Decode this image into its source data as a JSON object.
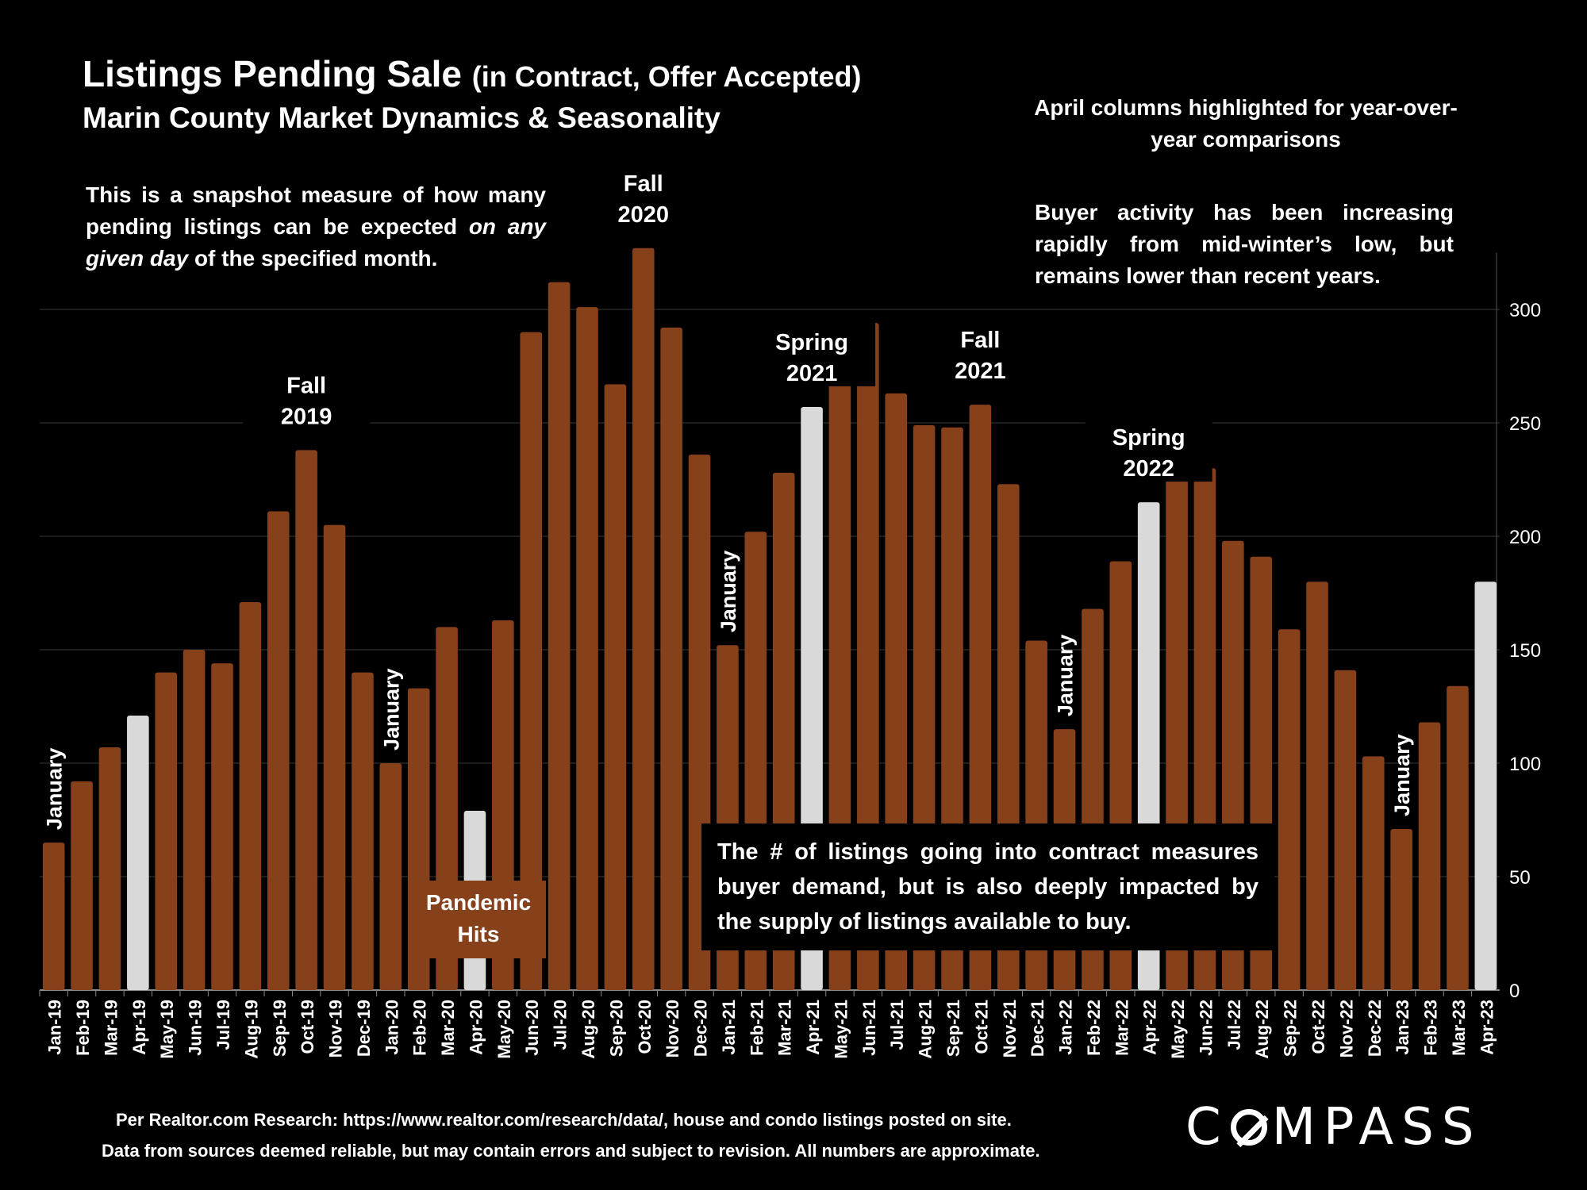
{
  "header": {
    "title_main": "Listings Pending Sale",
    "title_paren": "(in Contract, Offer Accepted)",
    "subtitle": "Marin County Market Dynamics & Seasonality"
  },
  "notes": {
    "left_part1": "This is a snapshot measure of how many pending listings can be expected",
    "left_italic": "on any given day",
    "left_part2": "of the specified month.",
    "april": "April columns highlighted for year-over-year comparisons",
    "buyer": "Buyer activity has been increasing rapidly from mid-winter’s low, but remains lower than recent years.",
    "callout": "The # of listings going into contract measures buyer demand, but is also deeply impacted by the supply of listings available to buy.",
    "pandemic_line1": "Pandemic",
    "pandemic_line2": "Hits"
  },
  "footer": {
    "source": "Per Realtor.com Research:  https://www.realtor.com/research/data/, house and condo listings posted on site.",
    "disclaimer": "Data from sources deemed reliable, but may contain errors and subject to revision. All numbers are approximate.",
    "logo_c": "C",
    "logo_rest": "MPASS"
  },
  "colors": {
    "bar": "#86401a",
    "highlight": "#d9d9d9",
    "grid": "#3a3a3a",
    "text": "#ffffff"
  },
  "chart_data": {
    "type": "bar",
    "title": "Listings Pending Sale (in Contract, Offer Accepted)",
    "subtitle": "Marin County Market Dynamics & Seasonality",
    "ylim": [
      0,
      325
    ],
    "yticks": [
      0,
      50,
      100,
      150,
      200,
      250,
      300
    ],
    "grid": true,
    "y_axis_side": "right",
    "categories": [
      "Jan-19",
      "Feb-19",
      "Mar-19",
      "Apr-19",
      "May-19",
      "Jun-19",
      "Jul-19",
      "Aug-19",
      "Sep-19",
      "Oct-19",
      "Nov-19",
      "Dec-19",
      "Jan-20",
      "Feb-20",
      "Mar-20",
      "Apr-20",
      "May-20",
      "Jun-20",
      "Jul-20",
      "Aug-20",
      "Sep-20",
      "Oct-20",
      "Nov-20",
      "Dec-20",
      "Jan-21",
      "Feb-21",
      "Mar-21",
      "Apr-21",
      "May-21",
      "Jun-21",
      "Jul-21",
      "Aug-21",
      "Sep-21",
      "Oct-21",
      "Nov-21",
      "Dec-21",
      "Jan-22",
      "Feb-22",
      "Mar-22",
      "Apr-22",
      "May-22",
      "Jun-22",
      "Jul-22",
      "Aug-22",
      "Sep-22",
      "Oct-22",
      "Nov-22",
      "Dec-22",
      "Jan-23",
      "Feb-23",
      "Mar-23",
      "Apr-23"
    ],
    "values": [
      65,
      92,
      107,
      121,
      140,
      150,
      144,
      171,
      211,
      238,
      205,
      140,
      100,
      133,
      160,
      79,
      163,
      290,
      312,
      301,
      267,
      327,
      292,
      236,
      152,
      202,
      228,
      257,
      283,
      294,
      263,
      249,
      248,
      258,
      223,
      154,
      115,
      168,
      189,
      215,
      239,
      230,
      198,
      191,
      159,
      180,
      141,
      103,
      71,
      118,
      134,
      180
    ],
    "highlighted": [
      "Apr-19",
      "Apr-20",
      "Apr-21",
      "Apr-22",
      "Apr-23"
    ],
    "annotations": [
      {
        "text": "January",
        "category": "Jan-19",
        "orientation": "vertical"
      },
      {
        "text": "January",
        "category": "Jan-20",
        "orientation": "vertical"
      },
      {
        "text": "January",
        "category": "Jan-21",
        "orientation": "vertical"
      },
      {
        "text": "January",
        "category": "Jan-22",
        "orientation": "vertical"
      },
      {
        "text": "January",
        "category": "Jan-23",
        "orientation": "vertical"
      },
      {
        "text": "Fall 2019",
        "lines": [
          "Fall",
          "2019"
        ],
        "category": "Oct-19"
      },
      {
        "text": "Fall 2020",
        "lines": [
          "Fall",
          "2020"
        ],
        "category": "Oct-20"
      },
      {
        "text": "Spring 2021",
        "lines": [
          "Spring",
          "2021"
        ],
        "category": "Apr-21"
      },
      {
        "text": "Fall 2021",
        "lines": [
          "Fall",
          "2021"
        ],
        "category": "Oct-21"
      },
      {
        "text": "Spring 2022",
        "lines": [
          "Spring",
          "2022"
        ],
        "category": "Apr-22"
      }
    ]
  }
}
